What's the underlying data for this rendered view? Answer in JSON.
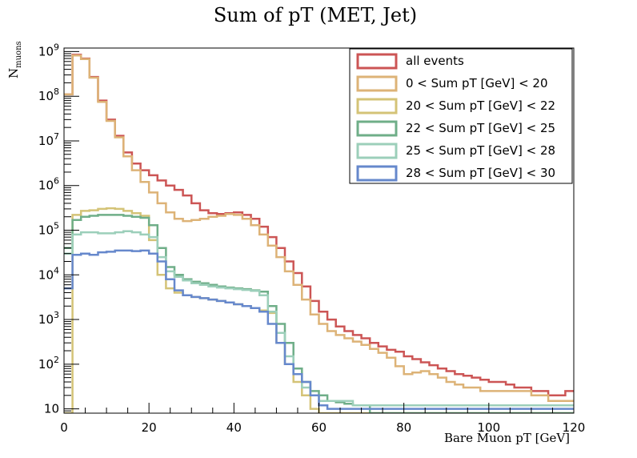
{
  "chart_data": {
    "type": "line",
    "title": "Sum of pT (MET, Jet)",
    "xlabel": "Bare Muon pT [GeV]",
    "ylabel": "N",
    "ylabel_sub": "muons",
    "xlim": [
      0,
      120
    ],
    "ylim": [
      8,
      1200000000
    ],
    "yscale": "log",
    "grid": false,
    "legend_position": "top-right",
    "bin_width": 2,
    "x_ticks": [
      0,
      20,
      40,
      60,
      80,
      100,
      120
    ],
    "y_ticks": [
      {
        "value": 10,
        "label": "10"
      },
      {
        "value": 100,
        "base": "10",
        "exp": "2"
      },
      {
        "value": 1000,
        "base": "10",
        "exp": "3"
      },
      {
        "value": 10000,
        "base": "10",
        "exp": "4"
      },
      {
        "value": 100000,
        "base": "10",
        "exp": "5"
      },
      {
        "value": 1000000,
        "base": "10",
        "exp": "6"
      },
      {
        "value": 10000000,
        "base": "10",
        "exp": "7"
      },
      {
        "value": 100000000,
        "base": "10",
        "exp": "8"
      },
      {
        "value": 1000000000,
        "base": "10",
        "exp": "9"
      }
    ],
    "series": [
      {
        "name": "all events",
        "color": "#cc5555",
        "values": [
          110000000,
          850000000,
          700000000,
          270000000,
          80000000,
          30000000,
          13000000,
          5500000,
          3100000,
          2200000,
          1700000,
          1300000,
          1000000,
          800000,
          600000,
          400000,
          280000,
          240000,
          230000,
          240000,
          250000,
          220000,
          180000,
          120000,
          70000,
          40000,
          20000,
          11000,
          5500,
          2600,
          1500,
          1000,
          700,
          550,
          450,
          380,
          300,
          250,
          210,
          190,
          150,
          130,
          110,
          95,
          80,
          70,
          60,
          55,
          50,
          45,
          40,
          40,
          35,
          30,
          30,
          25,
          25,
          20,
          20,
          25
        ]
      },
      {
        "name": "0 < Sum pT [GeV] < 20",
        "color": "#ddb377",
        "values": [
          110000000,
          820000000,
          680000000,
          260000000,
          75000000,
          28000000,
          12000000,
          4500000,
          2200000,
          1200000,
          700000,
          400000,
          250000,
          180000,
          160000,
          170000,
          180000,
          200000,
          210000,
          230000,
          220000,
          180000,
          130000,
          80000,
          45000,
          25000,
          12000,
          6000,
          2800,
          1300,
          800,
          550,
          450,
          380,
          320,
          270,
          220,
          180,
          140,
          90,
          60,
          65,
          70,
          60,
          50,
          40,
          35,
          30,
          30,
          25,
          25,
          25,
          25,
          25,
          25,
          20,
          20,
          15,
          15,
          15
        ]
      },
      {
        "name": "20 < Sum pT [GeV] < 22",
        "color": "#d4c377",
        "values": [
          8,
          220000,
          270000,
          280000,
          300000,
          310000,
          300000,
          270000,
          240000,
          210000,
          60000,
          10000,
          5000,
          4000,
          3500,
          3200,
          3000,
          2800,
          2600,
          2400,
          2200,
          2000,
          1800,
          1600,
          1400,
          300,
          100,
          40,
          20,
          10,
          8,
          8,
          8,
          8,
          8,
          8,
          8,
          8,
          8,
          8,
          8,
          8,
          8,
          8,
          8,
          8,
          8,
          8,
          8,
          8,
          8,
          8,
          8,
          8,
          8,
          8,
          8,
          8,
          8,
          8
        ]
      },
      {
        "name": "22 < Sum pT [GeV] < 25",
        "color": "#6fae88",
        "values": [
          40000,
          170000,
          200000,
          210000,
          220000,
          220000,
          220000,
          210000,
          200000,
          190000,
          130000,
          40000,
          15000,
          10000,
          8000,
          7000,
          6500,
          6000,
          5500,
          5200,
          5000,
          4800,
          4500,
          4200,
          2000,
          800,
          300,
          80,
          40,
          25,
          20,
          15,
          14,
          13,
          12,
          12,
          8,
          8,
          8,
          8,
          8,
          8,
          8,
          8,
          8,
          8,
          8,
          8,
          8,
          8,
          8,
          8,
          8,
          8,
          8,
          8,
          8,
          8,
          8,
          8
        ]
      },
      {
        "name": "25 < Sum pT [GeV] < 28",
        "color": "#9ccfba",
        "values": [
          30000,
          80000,
          90000,
          90000,
          85000,
          85000,
          90000,
          95000,
          90000,
          80000,
          70000,
          25000,
          12000,
          9000,
          7500,
          6500,
          6000,
          5500,
          5200,
          5000,
          4800,
          4600,
          4400,
          3500,
          1500,
          500,
          150,
          60,
          30,
          20,
          15,
          15,
          15,
          15,
          12,
          12,
          12,
          12,
          12,
          12,
          12,
          12,
          12,
          12,
          12,
          12,
          12,
          12,
          12,
          12,
          12,
          12,
          12,
          12,
          12,
          12,
          12,
          12,
          12,
          12
        ]
      },
      {
        "name": "28 < Sum pT [GeV] < 30",
        "color": "#6688cc",
        "values": [
          5000,
          28000,
          30000,
          28000,
          32000,
          33000,
          35000,
          35000,
          34000,
          35000,
          30000,
          20000,
          8000,
          4500,
          3500,
          3200,
          3000,
          2800,
          2600,
          2400,
          2200,
          2000,
          1800,
          1500,
          800,
          300,
          100,
          60,
          40,
          20,
          12,
          10,
          10,
          10,
          10,
          10,
          10,
          10,
          10,
          10,
          10,
          10,
          10,
          10,
          10,
          10,
          10,
          10,
          10,
          10,
          10,
          10,
          10,
          10,
          10,
          10,
          10,
          10,
          10,
          10
        ]
      }
    ]
  }
}
